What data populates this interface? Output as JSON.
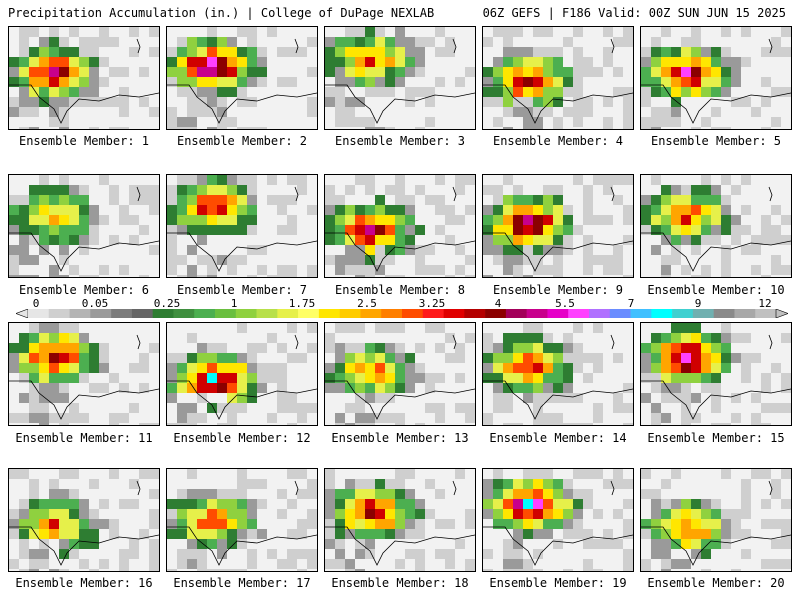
{
  "header": {
    "left": "Precipitation Accumulation (in.) | College of DuPage NEXLAB",
    "right": "06Z GEFS | F186 Valid: 00Z SUN JUN 15 2025"
  },
  "members": [
    {
      "label": "Ensemble Member: 1"
    },
    {
      "label": "Ensemble Member: 2"
    },
    {
      "label": "Ensemble Member: 3"
    },
    {
      "label": "Ensemble Member: 4"
    },
    {
      "label": "Ensemble Member: 5"
    },
    {
      "label": "Ensemble Member: 6"
    },
    {
      "label": "Ensemble Member: 7"
    },
    {
      "label": "Ensemble Member: 8"
    },
    {
      "label": "Ensemble Member: 9"
    },
    {
      "label": "Ensemble Member: 10"
    },
    {
      "label": "Ensemble Member: 11"
    },
    {
      "label": "Ensemble Member: 12"
    },
    {
      "label": "Ensemble Member: 13"
    },
    {
      "label": "Ensemble Member: 14"
    },
    {
      "label": "Ensemble Member: 15"
    },
    {
      "label": "Ensemble Member: 16"
    },
    {
      "label": "Ensemble Member: 17"
    },
    {
      "label": "Ensemble Member: 18"
    },
    {
      "label": "Ensemble Member: 19"
    },
    {
      "label": "Ensemble Member: 20"
    }
  ],
  "colorbar": {
    "ticks": [
      "0",
      "0.05",
      "0.25",
      "1",
      "1.75",
      "2.5",
      "3.25",
      "4",
      "5.5",
      "7",
      "9",
      "12"
    ],
    "colors": [
      "#e6e6e6",
      "#cfcfcf",
      "#b4b4b4",
      "#9a9a9a",
      "#7c7c7c",
      "#666666",
      "#2e7d32",
      "#3f8f3f",
      "#4caf50",
      "#6abf3f",
      "#8fd13f",
      "#b8e04a",
      "#e6f04a",
      "#ffff66",
      "#ffe600",
      "#ffcc00",
      "#ffa500",
      "#ff7f00",
      "#ff4c00",
      "#ff1a1a",
      "#e00000",
      "#b40000",
      "#8b0000",
      "#a3005a",
      "#c8008c",
      "#e600c8",
      "#ff40ff",
      "#b070ff",
      "#6a8cff",
      "#40c0ff",
      "#00ffff",
      "#40d0d0",
      "#70b0b0",
      "#8a8a8a",
      "#a8a8a8",
      "#c0c0c0"
    ]
  }
}
